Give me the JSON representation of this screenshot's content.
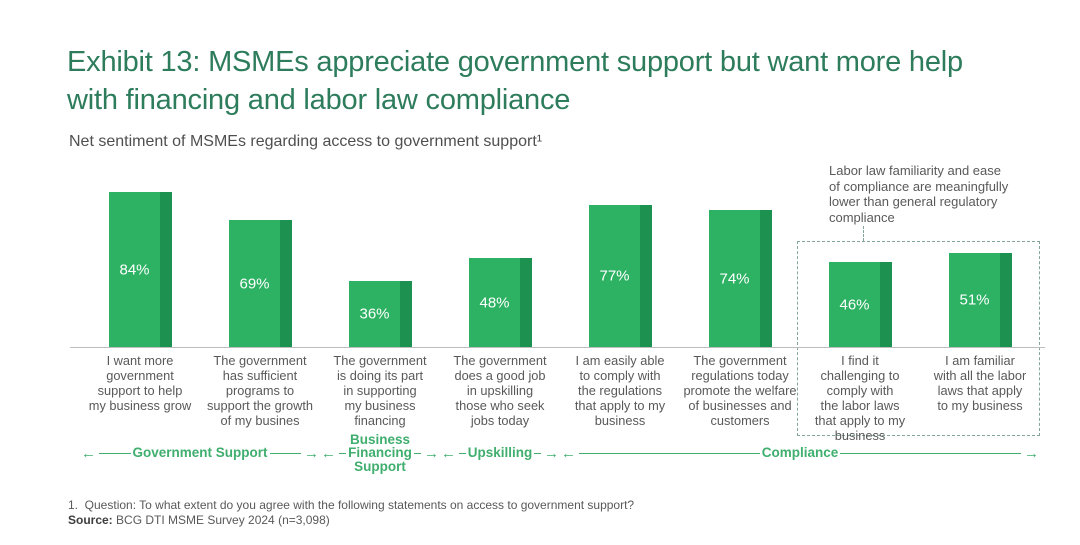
{
  "page": {
    "title": "Exhibit 13: MSMEs appreciate government support but want more help\nwith financing and labor law compliance",
    "subtitle": "Net sentiment of MSMEs regarding access to government support¹",
    "colors": {
      "heading": "#2D7C5C"
    }
  },
  "annotation": {
    "text": "Labor law familiarity and ease\nof compliance are meaningfully\nlower than general regulatory\ncompliance"
  },
  "chart_data": {
    "type": "bar",
    "title": "Net sentiment of MSMEs regarding access to government support",
    "unit": "%",
    "ylim": [
      0,
      100
    ],
    "values": [
      84,
      69,
      36,
      48,
      77,
      74,
      46,
      51
    ],
    "categories": [
      "I want more\ngovernment\nsupport to help\nmy business grow",
      "The government\nhas sufficient\nprograms to\nsupport the growth\nof my busines",
      "The government\nis doing its part\nin supporting\nmy business\nfinancing",
      "The government\ndoes a good job\nin upskilling\nthose who seek\njobs today",
      "I am easily able\nto comply with\nthe regulations\nthat apply to my\nbusiness",
      "The government\nregulations today\npromote the welfare\nof businesses and\ncustomers",
      "I find it\nchallenging to\ncomply with\nthe labor laws\nthat apply to my\nbusiness",
      "I am familiar\nwith all the labor\nlaws that apply\nto my business"
    ],
    "groups": [
      {
        "label": "Government Support",
        "start": 0,
        "end": 1
      },
      {
        "label": "Business\nFinancing\nSupport",
        "start": 2,
        "end": 2
      },
      {
        "label": "Upskilling",
        "start": 3,
        "end": 3
      },
      {
        "label": "Compliance",
        "start": 4,
        "end": 7
      }
    ],
    "highlight_box": {
      "start": 6,
      "end": 7
    },
    "colors": {
      "bar": "#2DB263",
      "bar_shadow": "#1C9150",
      "text_on_bar": "#FFFFFF",
      "group_label": "#3FAE6E",
      "category_label": "#595959",
      "highlight_border": "#84A59B",
      "heading": "#2D7C5C"
    },
    "legend": [],
    "grid": false
  },
  "footnote": {
    "note": "1.  Question: To what extent do you agree with the following statements on access to government support?",
    "source_label": "Source:",
    "source_text": " BCG DTI MSME Survey 2024 (n=3,098)"
  }
}
